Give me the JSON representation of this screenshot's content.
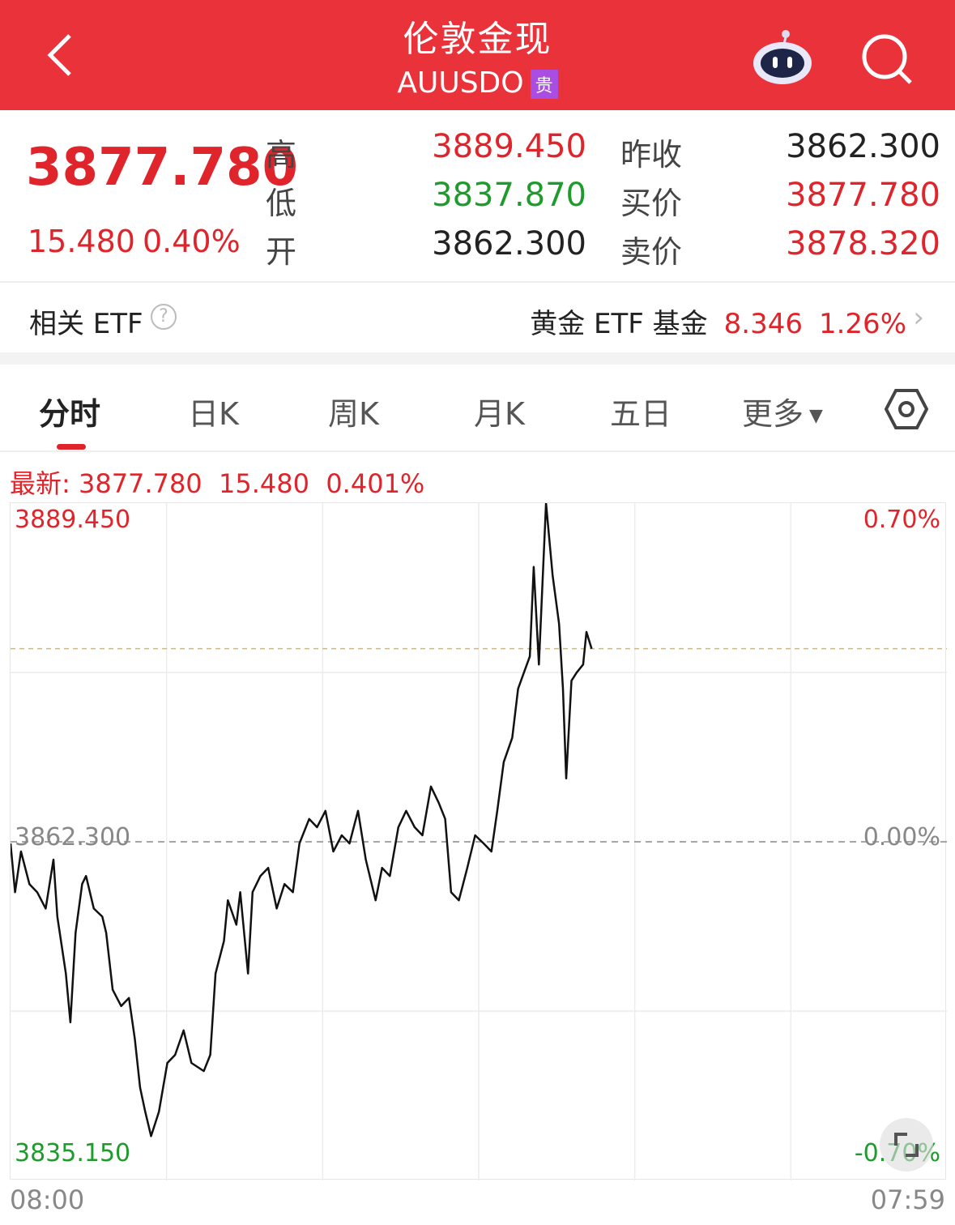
{
  "header": {
    "title": "伦敦金现",
    "symbol": "AUUSDO",
    "badge": "贵",
    "icons": [
      "back-icon",
      "robot-assistant-icon",
      "search-icon"
    ]
  },
  "quote": {
    "price": "3877.780",
    "change": "15.480",
    "change_pct": "0.40%",
    "high_label": "高",
    "high": "3889.450",
    "low_label": "低",
    "low": "3837.870",
    "open_label": "开",
    "open": "3862.300",
    "prev_close_label": "昨收",
    "prev_close": "3862.300",
    "bid_label": "买价",
    "bid": "3877.780",
    "ask_label": "卖价",
    "ask": "3878.320"
  },
  "etf": {
    "label": "相关 ETF",
    "help_icon": "question-icon",
    "name": "黄金 ETF 基金",
    "price": "8.346",
    "pct": "1.26%"
  },
  "tabs": [
    {
      "label": "分时",
      "active": true
    },
    {
      "label": "日K"
    },
    {
      "label": "周K"
    },
    {
      "label": "月K"
    },
    {
      "label": "五日"
    },
    {
      "label": "更多"
    }
  ],
  "latest": {
    "label": "最新:",
    "price": "3877.780",
    "change": "15.480",
    "pct": "0.401%"
  },
  "colors": {
    "up": "#e0242b",
    "down": "#1f9b2d",
    "header": "#ea323a"
  },
  "chart_data": {
    "type": "line",
    "ylim": [
      3835.15,
      3889.45
    ],
    "ref": 3862.3,
    "y_ticks_left": [
      "3889.450",
      "3862.300",
      "3835.150"
    ],
    "y_ticks_right": [
      "0.70%",
      "0.00%",
      "-0.70%"
    ],
    "x_ticks": [
      "08:00",
      "07:59"
    ],
    "series": [
      [
        "08:00",
        3862.17
      ],
      [
        "08:07",
        3858.26
      ],
      [
        "08:16",
        3861.52
      ],
      [
        "08:29",
        3858.91
      ],
      [
        "08:41",
        3858.26
      ],
      [
        "08:54",
        3856.95
      ],
      [
        "09:06",
        3860.87
      ],
      [
        "09:12",
        3856.3
      ],
      [
        "09:25",
        3851.74
      ],
      [
        "09:32",
        3847.83
      ],
      [
        "09:40",
        3855.0
      ],
      [
        "09:50",
        3858.91
      ],
      [
        "09:56",
        3859.56
      ],
      [
        "10:08",
        3856.95
      ],
      [
        "10:21",
        3856.3
      ],
      [
        "10:27",
        3855.0
      ],
      [
        "10:37",
        3850.44
      ],
      [
        "10:50",
        3849.13
      ],
      [
        "11:02",
        3849.78
      ],
      [
        "11:11",
        3846.52
      ],
      [
        "11:19",
        3842.61
      ],
      [
        "11:27",
        3840.66
      ],
      [
        "11:36",
        3838.7
      ],
      [
        "11:48",
        3840.66
      ],
      [
        "12:01",
        3844.57
      ],
      [
        "12:13",
        3845.22
      ],
      [
        "12:26",
        3847.18
      ],
      [
        "12:38",
        3844.57
      ],
      [
        "12:57",
        3843.92
      ],
      [
        "13:07",
        3845.22
      ],
      [
        "13:15",
        3851.74
      ],
      [
        "13:28",
        3854.35
      ],
      [
        "13:34",
        3857.61
      ],
      [
        "13:47",
        3855.65
      ],
      [
        "13:53",
        3858.26
      ],
      [
        "14:05",
        3851.74
      ],
      [
        "14:12",
        3858.26
      ],
      [
        "14:24",
        3859.56
      ],
      [
        "14:36",
        3860.21
      ],
      [
        "14:49",
        3856.95
      ],
      [
        "15:01",
        3858.91
      ],
      [
        "15:14",
        3858.26
      ],
      [
        "15:24",
        3862.17
      ],
      [
        "15:39",
        3864.13
      ],
      [
        "15:51",
        3863.47
      ],
      [
        "16:04",
        3864.78
      ],
      [
        "16:16",
        3861.52
      ],
      [
        "16:29",
        3862.82
      ],
      [
        "16:41",
        3862.17
      ],
      [
        "16:54",
        3864.78
      ],
      [
        "17:06",
        3860.87
      ],
      [
        "17:21",
        3857.61
      ],
      [
        "17:31",
        3860.21
      ],
      [
        "17:43",
        3859.56
      ],
      [
        "17:56",
        3863.47
      ],
      [
        "18:08",
        3864.78
      ],
      [
        "18:21",
        3863.47
      ],
      [
        "18:33",
        3862.82
      ],
      [
        "18:46",
        3866.73
      ],
      [
        "18:58",
        3865.43
      ],
      [
        "19:08",
        3864.13
      ],
      [
        "19:17",
        3858.26
      ],
      [
        "19:29",
        3857.61
      ],
      [
        "19:42",
        3860.21
      ],
      [
        "19:54",
        3862.82
      ],
      [
        "20:07",
        3862.17
      ],
      [
        "20:19",
        3861.52
      ],
      [
        "20:28",
        3864.78
      ],
      [
        "20:38",
        3868.69
      ],
      [
        "20:51",
        3870.64
      ],
      [
        "21:00",
        3874.56
      ],
      [
        "21:09",
        3875.86
      ],
      [
        "21:18",
        3877.16
      ],
      [
        "21:24",
        3884.33
      ],
      [
        "21:32",
        3876.51
      ],
      [
        "21:43",
        3889.45
      ],
      [
        "21:53",
        3883.68
      ],
      [
        "22:03",
        3879.77
      ],
      [
        "22:09",
        3874.56
      ],
      [
        "22:14",
        3867.38
      ],
      [
        "22:22",
        3875.21
      ],
      [
        "22:30",
        3875.86
      ],
      [
        "22:40",
        3876.51
      ],
      [
        "22:45",
        3879.12
      ],
      [
        "22:53",
        3877.78
      ]
    ]
  }
}
